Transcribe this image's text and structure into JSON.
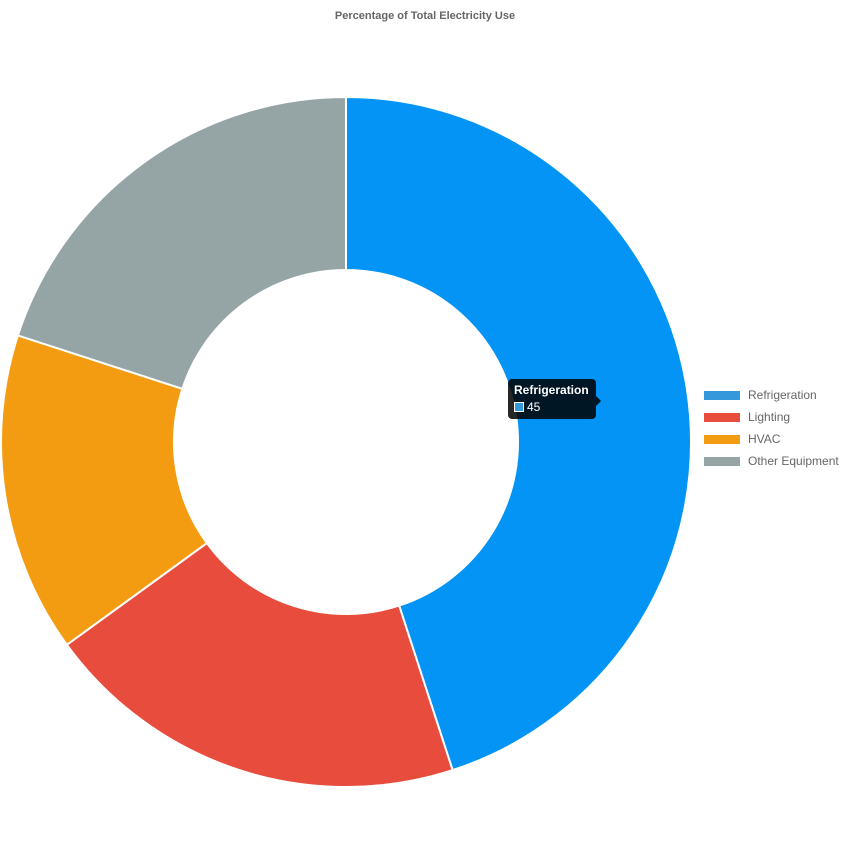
{
  "chart_data": {
    "type": "pie",
    "title": "Percentage of Total Electricity Use",
    "categories": [
      "Refrigeration",
      "Lighting",
      "HVAC",
      "Other Equipment"
    ],
    "values": [
      45,
      20,
      15,
      20
    ],
    "colors": [
      "#0394f5",
      "#e74c3c",
      "#f39c12",
      "#95a5a6"
    ],
    "legend_colors": [
      "#3498db",
      "#e74c3c",
      "#f39c12",
      "#95a5a6"
    ],
    "legend_position": "right",
    "donut": true
  },
  "tooltip": {
    "title": "Refrigeration",
    "value": "45",
    "swatch_color": "#3498db"
  }
}
